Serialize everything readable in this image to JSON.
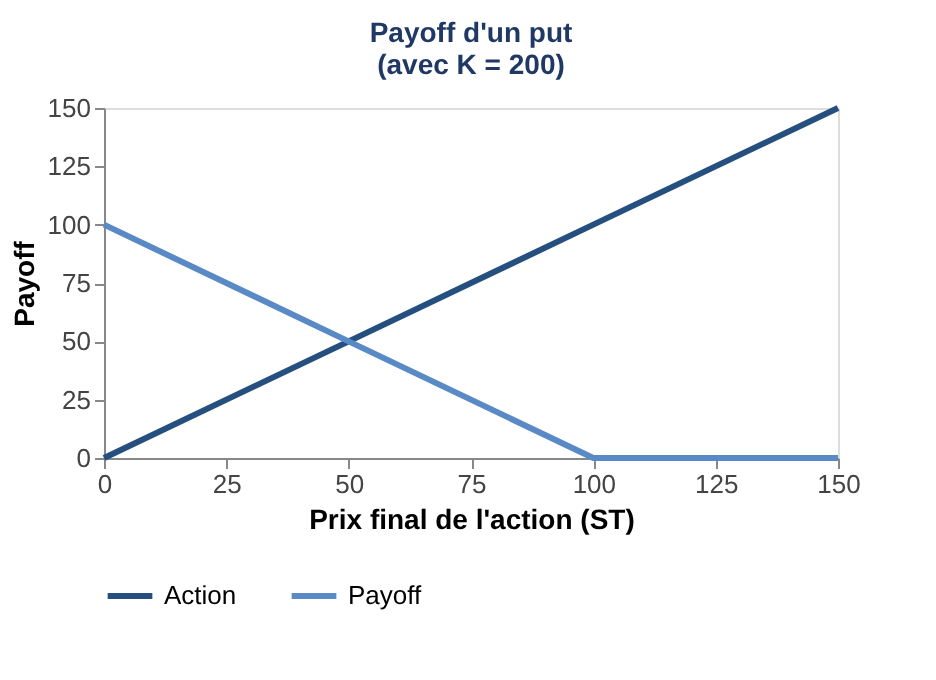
{
  "chart_data": {
    "type": "line",
    "title": "Payoff d'un put",
    "subtitle": "(avec K = 200)",
    "xlabel": "Prix final de l'action (ST)",
    "ylabel": "Payoff",
    "x": [
      0,
      50,
      100,
      150
    ],
    "series": [
      {
        "name": "Action",
        "color": "#254f7f",
        "values": [
          0,
          50,
          100,
          150
        ]
      },
      {
        "name": "Payoff",
        "color": "#5a8ac6",
        "values": [
          100,
          50,
          0,
          0
        ]
      }
    ],
    "xlim": [
      0,
      150
    ],
    "xticks": [
      0,
      25,
      50,
      75,
      100,
      125,
      150
    ],
    "ylim": [
      0,
      150
    ],
    "yticks": [
      0,
      25,
      50,
      75,
      100,
      125,
      150
    ],
    "grid": false,
    "legend": "bottom",
    "marker": "none",
    "line_style": "solid"
  }
}
